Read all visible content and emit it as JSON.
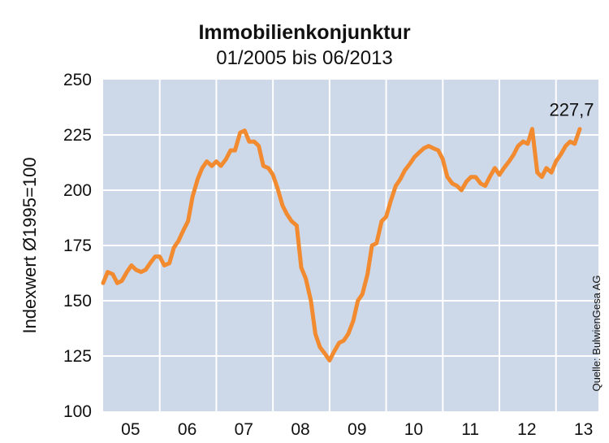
{
  "chart_data": {
    "type": "line",
    "title": "Immobilienkonjunktur",
    "subtitle": "01/2005 bis 06/2013",
    "ylabel": "Indexwert Ø1995=100",
    "source": "Quelle: BulwienGesa AG",
    "ylim": [
      100,
      250
    ],
    "yticks": [
      100,
      125,
      150,
      175,
      200,
      225,
      250
    ],
    "xlim": [
      2005.0,
      2013.75
    ],
    "year_labels": [
      "05",
      "06",
      "07",
      "08",
      "09",
      "10",
      "11",
      "12",
      "13"
    ],
    "grid": true,
    "annotation": {
      "text": "227,7",
      "x": 2013.42,
      "y": 227.7
    },
    "colors": {
      "plot_bg": "#cdd8e8",
      "line": "#f28a30",
      "grid": "#ffffff"
    },
    "series": [
      {
        "x": [
          2005.0,
          2005.08,
          2005.17,
          2005.25,
          2005.33,
          2005.42,
          2005.5,
          2005.58,
          2005.67,
          2005.75,
          2005.83,
          2005.92,
          2006.0,
          2006.08,
          2006.17,
          2006.25,
          2006.33,
          2006.42,
          2006.5,
          2006.58,
          2006.67,
          2006.75,
          2006.83,
          2006.92,
          2007.0,
          2007.08,
          2007.17,
          2007.25,
          2007.33,
          2007.42,
          2007.5,
          2007.58,
          2007.67,
          2007.75,
          2007.83,
          2007.92,
          2008.0,
          2008.08,
          2008.17,
          2008.25,
          2008.33,
          2008.42,
          2008.5,
          2008.58,
          2008.67,
          2008.75,
          2008.83,
          2008.92,
          2009.0,
          2009.08,
          2009.17,
          2009.25,
          2009.33,
          2009.42,
          2009.5,
          2009.58,
          2009.67,
          2009.75,
          2009.83,
          2009.92,
          2010.0,
          2010.08,
          2010.17,
          2010.25,
          2010.33,
          2010.42,
          2010.5,
          2010.58,
          2010.67,
          2010.75,
          2010.83,
          2010.92,
          2011.0,
          2011.08,
          2011.17,
          2011.25,
          2011.33,
          2011.42,
          2011.5,
          2011.58,
          2011.67,
          2011.75,
          2011.83,
          2011.92,
          2012.0,
          2012.08,
          2012.17,
          2012.25,
          2012.33,
          2012.42,
          2012.5,
          2012.58,
          2012.67,
          2012.75,
          2012.83,
          2012.92,
          2013.0,
          2013.08,
          2013.17,
          2013.25,
          2013.33,
          2013.42
        ],
        "y": [
          158,
          163,
          162,
          158,
          159,
          163,
          166,
          164,
          163,
          164,
          167,
          170,
          170,
          166,
          167,
          174,
          177,
          182,
          186,
          197,
          205,
          210,
          213,
          211,
          213,
          211,
          214,
          218,
          218,
          226,
          227,
          222,
          222,
          220,
          211,
          210,
          207,
          201,
          193,
          189,
          186,
          184,
          165,
          160,
          150,
          135,
          129,
          126,
          123,
          127,
          131,
          132,
          135,
          141,
          150,
          153,
          162,
          175,
          176,
          186,
          188,
          195,
          202,
          205,
          209,
          212,
          215,
          217,
          219,
          220,
          219,
          218,
          214,
          206,
          203,
          202,
          200,
          204,
          206,
          206,
          203,
          202,
          206,
          210,
          207,
          210,
          213,
          216,
          220,
          222,
          221,
          227.7,
          208,
          206,
          210,
          208,
          213,
          216,
          220,
          222,
          221,
          227.7
        ]
      }
    ]
  }
}
